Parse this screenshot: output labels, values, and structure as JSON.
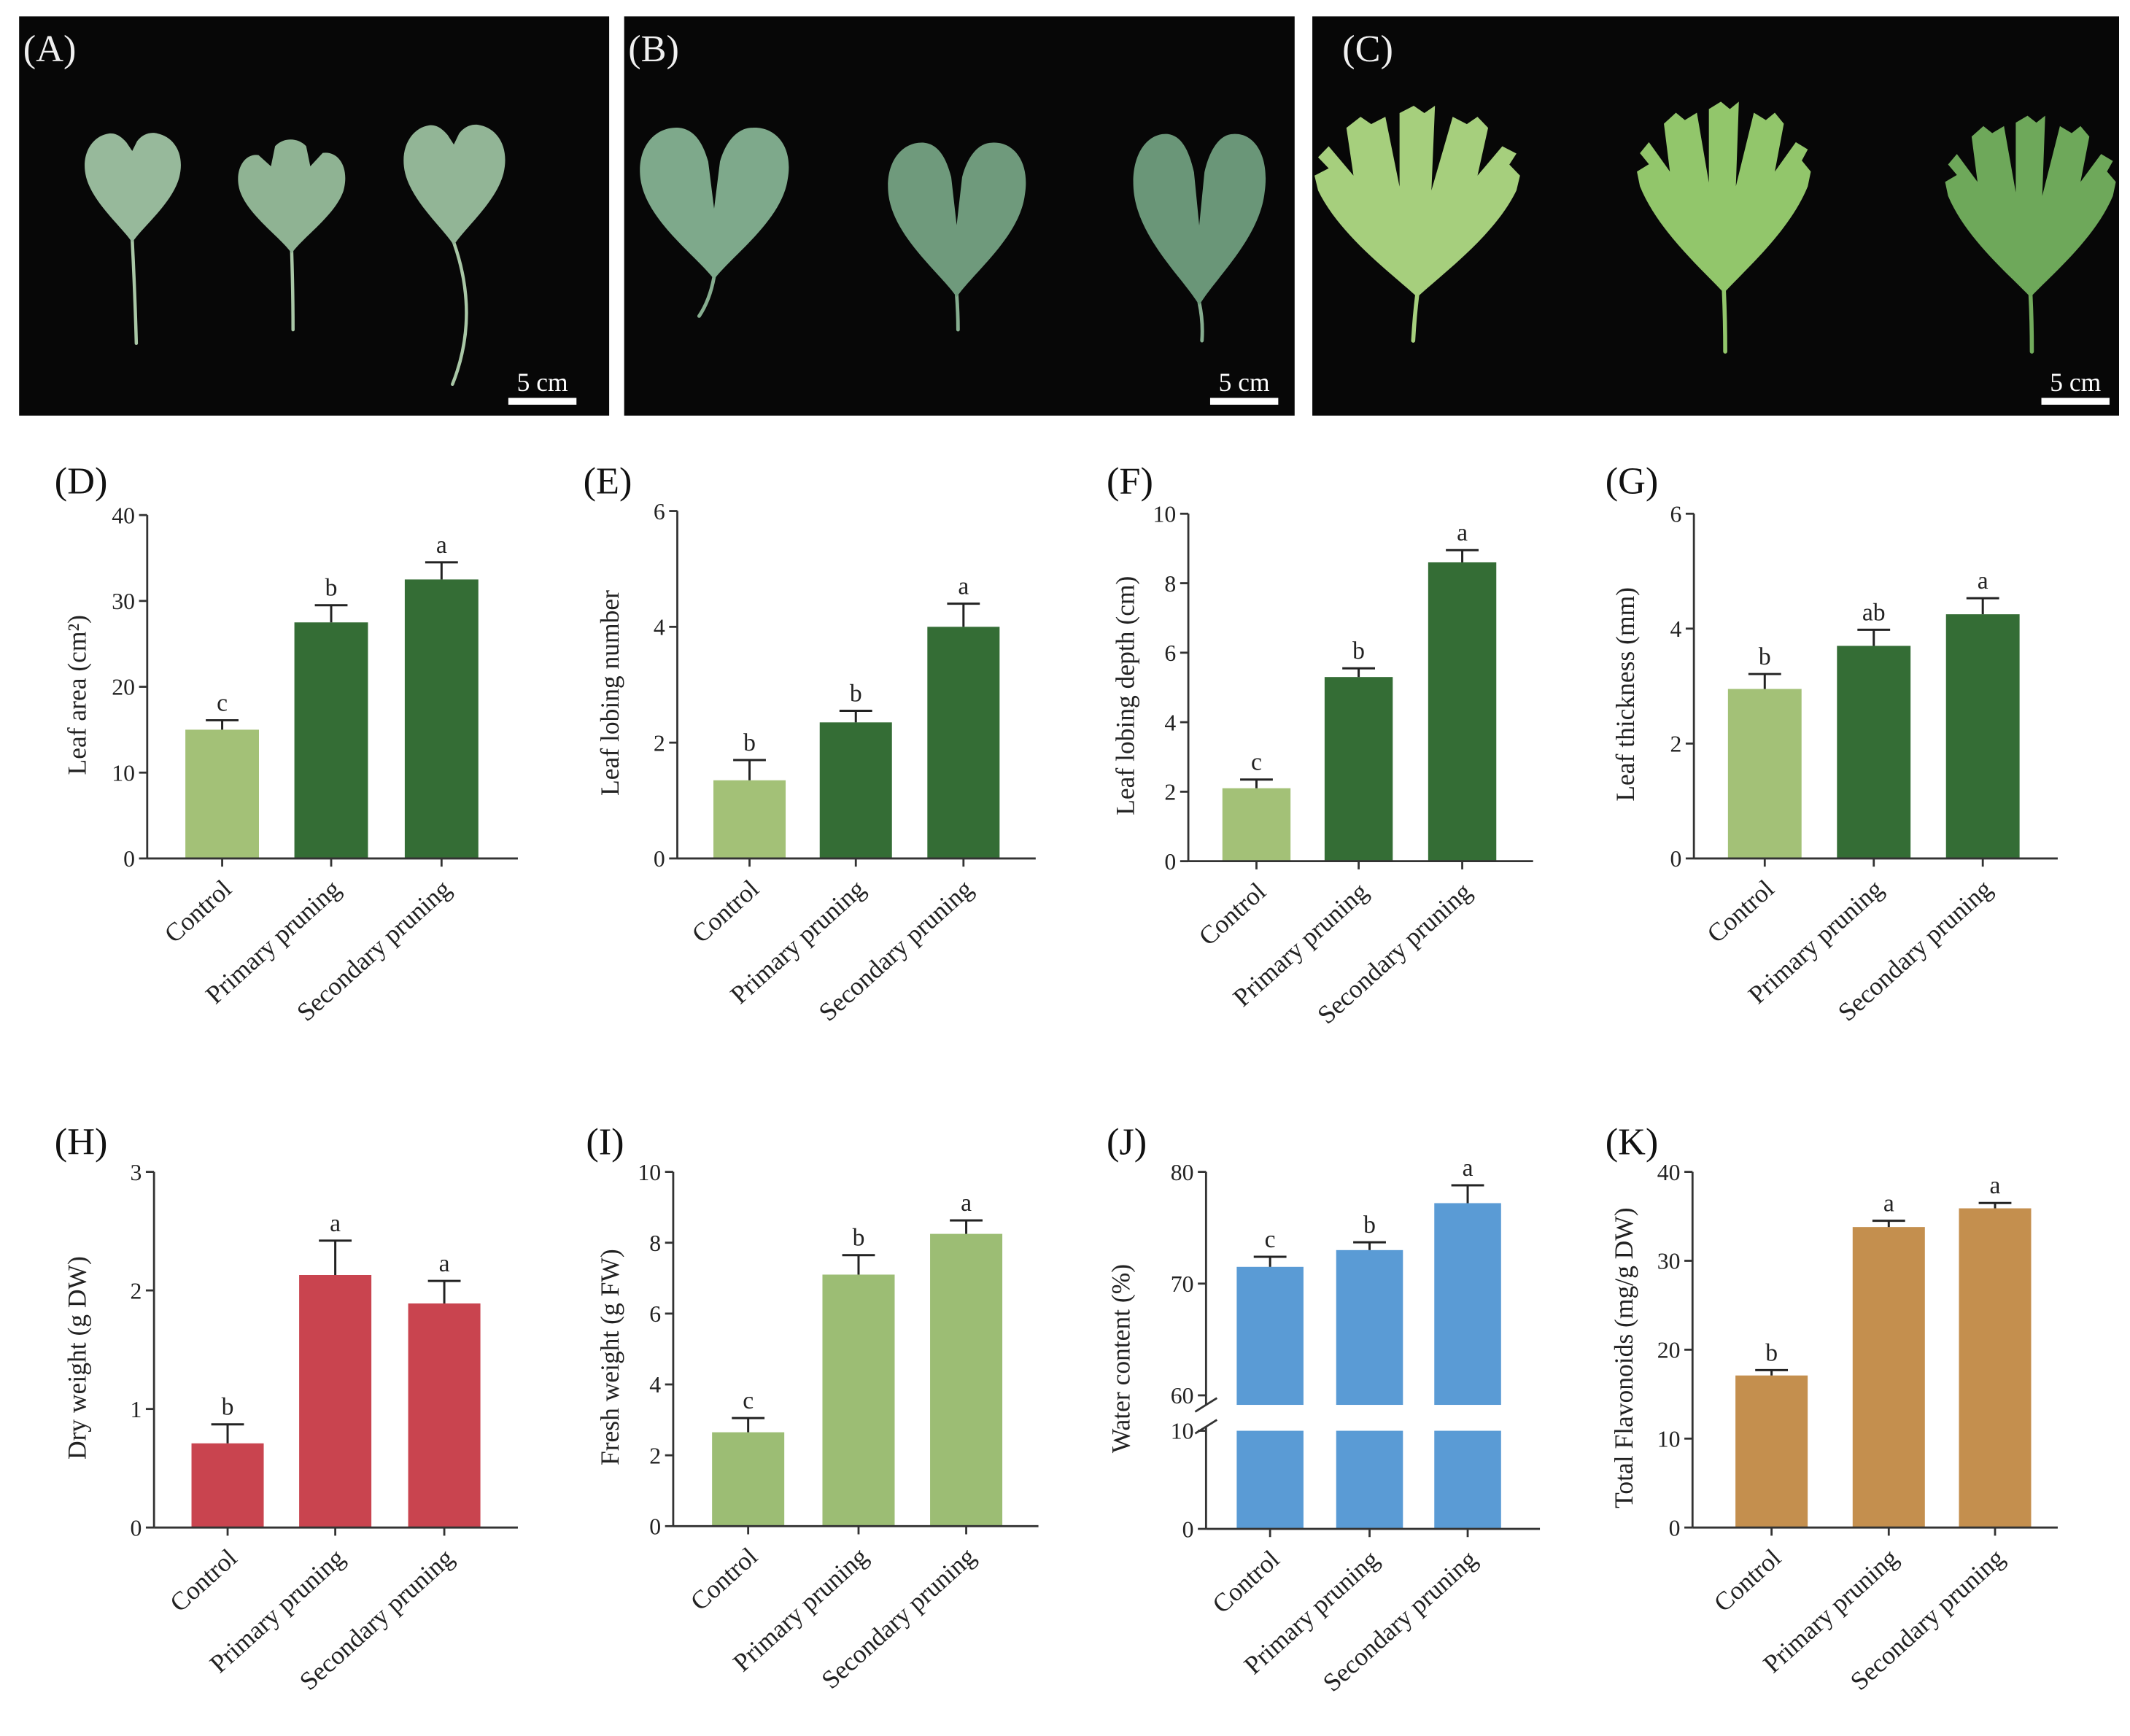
{
  "photos": [
    {
      "label": "(A)",
      "scale_bar": "5 cm"
    },
    {
      "label": "(B)",
      "scale_bar": "5 cm"
    },
    {
      "label": "(C)",
      "scale_bar": "5 cm"
    }
  ],
  "chart_data": [
    {
      "panel": "(D)",
      "type": "bar",
      "categories": [
        "Control",
        "Primary pruning",
        "Secondary pruning"
      ],
      "values": [
        15.0,
        27.5,
        32.5
      ],
      "errors": [
        1.1,
        2.0,
        2.0
      ],
      "significance": [
        "c",
        "b",
        "a"
      ],
      "ylabel": "Leaf area (cm²)",
      "ylim": [
        0,
        40
      ],
      "yticks": [
        0,
        10,
        20,
        30,
        40
      ],
      "colors": [
        "#a3c177",
        "#346d35",
        "#346d35"
      ]
    },
    {
      "panel": "(E)",
      "type": "bar",
      "categories": [
        "Control",
        "Primary pruning",
        "Secondary pruning"
      ],
      "values": [
        1.35,
        2.35,
        4.0
      ],
      "errors": [
        0.35,
        0.2,
        0.4
      ],
      "significance": [
        "b",
        "b",
        "a"
      ],
      "ylabel": "Leaf lobing number",
      "ylim": [
        0,
        6
      ],
      "yticks": [
        0,
        2,
        4,
        6
      ],
      "colors": [
        "#a3c177",
        "#346d35",
        "#346d35"
      ]
    },
    {
      "panel": "(F)",
      "type": "bar",
      "categories": [
        "Control",
        "Primary pruning",
        "Secondary pruning"
      ],
      "values": [
        2.1,
        5.3,
        8.6
      ],
      "errors": [
        0.25,
        0.25,
        0.35
      ],
      "significance": [
        "c",
        "b",
        "a"
      ],
      "ylabel": "Leaf lobing depth (cm)",
      "ylim": [
        0,
        10
      ],
      "yticks": [
        0,
        2,
        4,
        6,
        8,
        10
      ],
      "colors": [
        "#a3c177",
        "#346d35",
        "#346d35"
      ]
    },
    {
      "panel": "(G)",
      "type": "bar",
      "categories": [
        "Control",
        "Primary pruning",
        "Secondary pruning"
      ],
      "values": [
        2.95,
        3.7,
        4.25
      ],
      "errors": [
        0.26,
        0.28,
        0.28
      ],
      "significance": [
        "b",
        "ab",
        "a"
      ],
      "ylabel": "Leaf thickness (mm)",
      "ylim": [
        0,
        6
      ],
      "yticks": [
        0,
        2,
        4,
        6
      ],
      "colors": [
        "#a3c177",
        "#346d35",
        "#346d35"
      ]
    },
    {
      "panel": "(H)",
      "type": "bar",
      "categories": [
        "Control",
        "Primary pruning",
        "Secondary pruning"
      ],
      "values": [
        0.71,
        2.13,
        1.89
      ],
      "errors": [
        0.16,
        0.29,
        0.19
      ],
      "significance": [
        "b",
        "a",
        "a"
      ],
      "ylabel": "Dry weight (g DW)",
      "ylim": [
        0,
        3
      ],
      "yticks": [
        0,
        1,
        2,
        3
      ],
      "colors": [
        "#c9444f",
        "#c9444f",
        "#c9444f"
      ]
    },
    {
      "panel": "(I)",
      "type": "bar",
      "categories": [
        "Control",
        "Primary pruning",
        "Secondary pruning"
      ],
      "values": [
        2.65,
        7.1,
        8.25
      ],
      "errors": [
        0.4,
        0.55,
        0.38
      ],
      "significance": [
        "c",
        "b",
        "a"
      ],
      "ylabel": "Fresh weight (g FW)",
      "ylim": [
        0,
        10
      ],
      "yticks": [
        0,
        2,
        4,
        6,
        8,
        10
      ],
      "colors": [
        "#9cbd74",
        "#9cbd74",
        "#9cbd74"
      ]
    },
    {
      "panel": "(J)",
      "type": "bar",
      "categories": [
        "Control",
        "Primary pruning",
        "Secondary pruning"
      ],
      "values": [
        71.5,
        73.0,
        77.2
      ],
      "errors": [
        0.9,
        0.7,
        1.6
      ],
      "significance": [
        "c",
        "b",
        "a"
      ],
      "ylabel": "Water content (%)",
      "ylim": [
        0,
        80
      ],
      "axis_break": [
        10,
        60
      ],
      "yticks": [
        0,
        10,
        60,
        70,
        80
      ],
      "colors": [
        "#5a9bd5",
        "#5a9bd5",
        "#5a9bd5"
      ]
    },
    {
      "panel": "(K)",
      "type": "bar",
      "categories": [
        "Control",
        "Primary pruning",
        "Secondary pruning"
      ],
      "values": [
        17.1,
        33.8,
        35.9
      ],
      "errors": [
        0.6,
        0.7,
        0.6
      ],
      "significance": [
        "b",
        "a",
        "a"
      ],
      "ylabel": "Total Flavonoids (mg/g DW)",
      "ylim": [
        0,
        40
      ],
      "yticks": [
        0,
        10,
        20,
        30,
        40
      ],
      "colors": [
        "#c48f4e",
        "#c48f4e",
        "#c48f4e"
      ]
    }
  ]
}
